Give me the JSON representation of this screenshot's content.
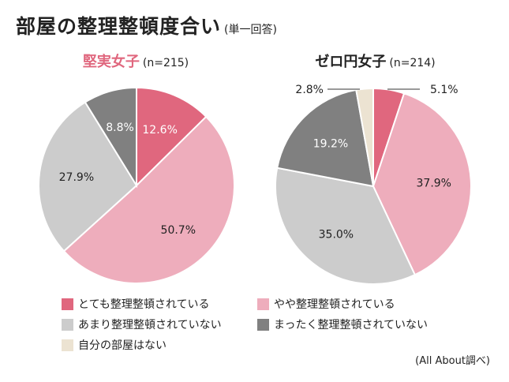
{
  "title": "部屋の整理整頓度合い",
  "subtitle": "(単一回答)",
  "categories": [
    "とても整理整頓されている",
    "やや整理整頓されている",
    "あまり整理整頓されていない",
    "まったく整理整頓されていない",
    "自分の部屋はない"
  ],
  "colors": [
    "#e0677e",
    "#eeadbc",
    "#cccccc",
    "#808080",
    "#ece3d2"
  ],
  "chart_data": [
    {
      "type": "pie",
      "title": "堅実女子",
      "n": "(n=215)",
      "labels": [
        "とても整理整頓されている",
        "やや整理整頓されている",
        "あまり整理整頓されていない",
        "まったく整理整頓されていない"
      ],
      "values": [
        12.6,
        50.7,
        27.9,
        8.8
      ],
      "value_labels": [
        "12.6%",
        "50.7%",
        "27.9%",
        "8.8%"
      ]
    },
    {
      "type": "pie",
      "title": "ゼロ円女子",
      "n": "(n=214)",
      "labels": [
        "とても整理整頓されている",
        "やや整理整頓されている",
        "あまり整理整頓されていない",
        "まったく整理整頓されていない",
        "自分の部屋はない"
      ],
      "values": [
        5.1,
        37.9,
        35.0,
        19.2,
        2.8
      ],
      "value_labels": [
        "5.1%",
        "37.9%",
        "35.0%",
        "19.2%",
        "2.8%"
      ]
    }
  ],
  "source": "(All About調べ)"
}
